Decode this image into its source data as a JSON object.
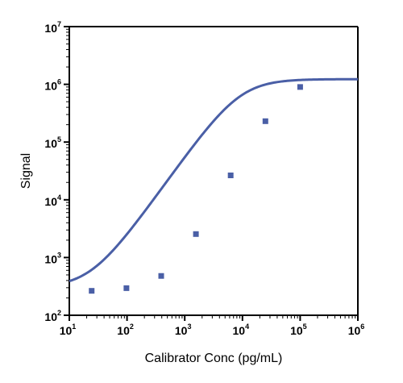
{
  "chart_data": {
    "type": "scatter",
    "xlabel": "Calibrator Conc (pg/mL)",
    "ylabel": "Signal",
    "xscale": "log",
    "yscale": "log",
    "xlim": [
      10,
      1000000
    ],
    "ylim": [
      100,
      10000000
    ],
    "x_ticks": [
      {
        "base": "10",
        "exp": "1"
      },
      {
        "base": "10",
        "exp": "2"
      },
      {
        "base": "10",
        "exp": "3"
      },
      {
        "base": "10",
        "exp": "4"
      },
      {
        "base": "10",
        "exp": "5"
      },
      {
        "base": "10",
        "exp": "6"
      }
    ],
    "y_ticks": [
      {
        "base": "10",
        "exp": "2"
      },
      {
        "base": "10",
        "exp": "3"
      },
      {
        "base": "10",
        "exp": "4"
      },
      {
        "base": "10",
        "exp": "5"
      },
      {
        "base": "10",
        "exp": "6"
      },
      {
        "base": "10",
        "exp": "7"
      }
    ],
    "grid": false,
    "legend": "none",
    "series": [
      {
        "marker": "square",
        "color": "#4a5fa6",
        "x": [
          24.4,
          97.7,
          391,
          1563,
          6250,
          25000,
          100000
        ],
        "y": [
          265,
          295,
          480,
          2550,
          26500,
          230000,
          900000
        ]
      }
    ],
    "fit_curve": {
      "model": "4PL",
      "color": "#4a5fa6",
      "bottom": 300,
      "top": 1230000,
      "ec50": 9000,
      "hill": 1.4
    }
  }
}
